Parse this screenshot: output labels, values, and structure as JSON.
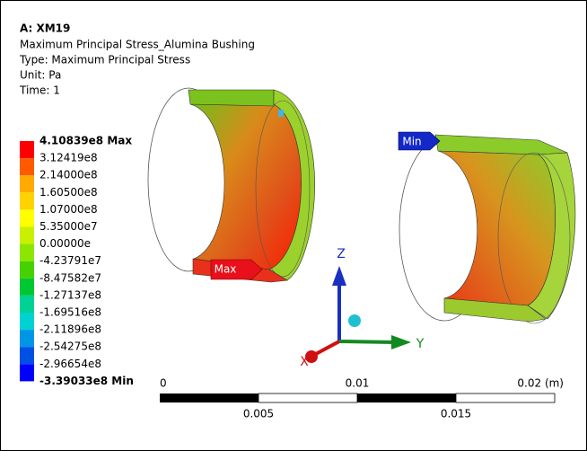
{
  "header": {
    "title": "A: XM19",
    "lines": [
      "Maximum Principal Stress_Alumina Bushing",
      "Type: Maximum Principal Stress",
      "Unit: Pa",
      "Time: 1"
    ]
  },
  "legend": {
    "labels": [
      "4.10839e8 Max",
      "3.12419e8",
      "2.14000e8",
      "1.60500e8",
      "1.07000e8",
      "5.35000e7",
      "0.00000e",
      "-4.23791e7",
      "-8.47582e7",
      "-1.27137e8",
      "-1.69516e8",
      "-2.11896e8",
      "-2.54275e8",
      "-2.96654e8",
      "-3.39033e8 Min"
    ]
  },
  "probes": {
    "max": "Max",
    "min": "Min"
  },
  "triad": {
    "z": "Z",
    "y": "Y",
    "x": "X"
  },
  "scale_bar": {
    "top_labels": [
      "0",
      "0.01",
      "0.02 (m)"
    ],
    "bottom_labels": [
      "0.005",
      "0.015"
    ]
  }
}
